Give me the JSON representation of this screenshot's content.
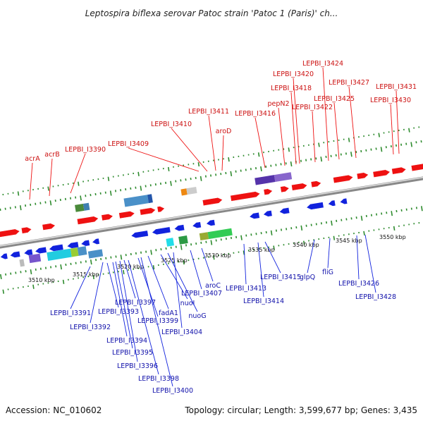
{
  "title": "Leptospira biflexa serovar Patoc strain 'Patoc 1 (Paris)' ch...",
  "footer": {
    "accession": "Accession: NC_010602",
    "summary": "Topology: circular; Length: 3,599,677 bp; Genes: 3,435"
  },
  "colors": {
    "forward": "#ee1111",
    "reverse": "#1122dd",
    "backbone": "#888888",
    "tick": "#2e8b2e"
  },
  "scale_labels": [
    "3510 kbp",
    "3515 kbp",
    "3520 kbp",
    "3525 kbp",
    "3530 kbp",
    "3535 kbp",
    "3540 kbp",
    "3545 kbp",
    "3550 kbp"
  ],
  "forward_labels": [
    "acrA",
    "acrB",
    "LEPBI_I3390",
    "LEPBI_I3409",
    "LEPBI_I3410",
    "LEPBI_I3411",
    "aroD",
    "LEPBI_I3416",
    "pepN2",
    "LEPBI_I3418",
    "LEPBI_I3420",
    "LEPBI_I3422",
    "LEPBI_I3424",
    "LEPBI_I3425",
    "LEPBI_I3427",
    "LEPBI_I3430",
    "LEPBI_I3431"
  ],
  "reverse_labels": [
    "LEPBI_I3391",
    "LEPBI_I3392",
    "LEPBI_I3393",
    "LEPBI_I3394",
    "LEPBI_I3395",
    "LEPBI_I3396",
    "LEPBI_I3397",
    "LEPBI_I3398",
    "LEPBI_I3399",
    "LEPBI_I3400",
    "fadA1",
    "nuoI",
    "nuoG",
    "LEPBI_I3404",
    "LEPBI_I3407",
    "aroC",
    "LEPBI_I3413",
    "LEPBI_I3414",
    "LEPBI_I3415",
    "glpQ",
    "fliG",
    "LEPBI_I3426",
    "LEPBI_I3428"
  ]
}
